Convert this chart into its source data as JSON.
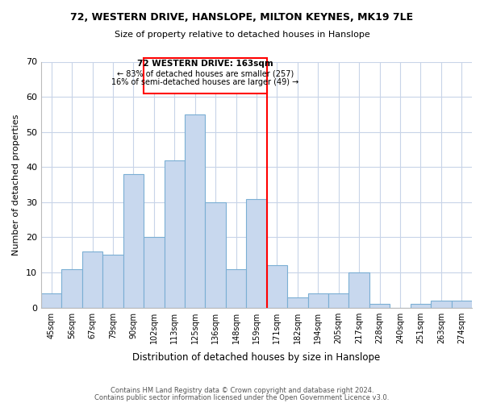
{
  "title1": "72, WESTERN DRIVE, HANSLOPE, MILTON KEYNES, MK19 7LE",
  "title2": "Size of property relative to detached houses in Hanslope",
  "xlabel": "Distribution of detached houses by size in Hanslope",
  "ylabel": "Number of detached properties",
  "bar_labels": [
    "45sqm",
    "56sqm",
    "67sqm",
    "79sqm",
    "90sqm",
    "102sqm",
    "113sqm",
    "125sqm",
    "136sqm",
    "148sqm",
    "159sqm",
    "171sqm",
    "182sqm",
    "194sqm",
    "205sqm",
    "217sqm",
    "228sqm",
    "240sqm",
    "251sqm",
    "263sqm",
    "274sqm"
  ],
  "bar_values": [
    4,
    11,
    16,
    15,
    38,
    20,
    42,
    55,
    30,
    11,
    31,
    12,
    3,
    4,
    4,
    10,
    1,
    0,
    1,
    2,
    2
  ],
  "bar_color": "#c8d8ee",
  "bar_edge_color": "#7bafd4",
  "vline_x_idx": 10,
  "annotation_title": "72 WESTERN DRIVE: 163sqm",
  "annotation_line1": "← 83% of detached houses are smaller (257)",
  "annotation_line2": "16% of semi-detached houses are larger (49) →",
  "ylim": [
    0,
    70
  ],
  "yticks": [
    0,
    10,
    20,
    30,
    40,
    50,
    60,
    70
  ],
  "footnote1": "Contains HM Land Registry data © Crown copyright and database right 2024.",
  "footnote2": "Contains public sector information licensed under the Open Government Licence v3.0.",
  "background_color": "#ffffff",
  "grid_color": "#c8d4e8"
}
